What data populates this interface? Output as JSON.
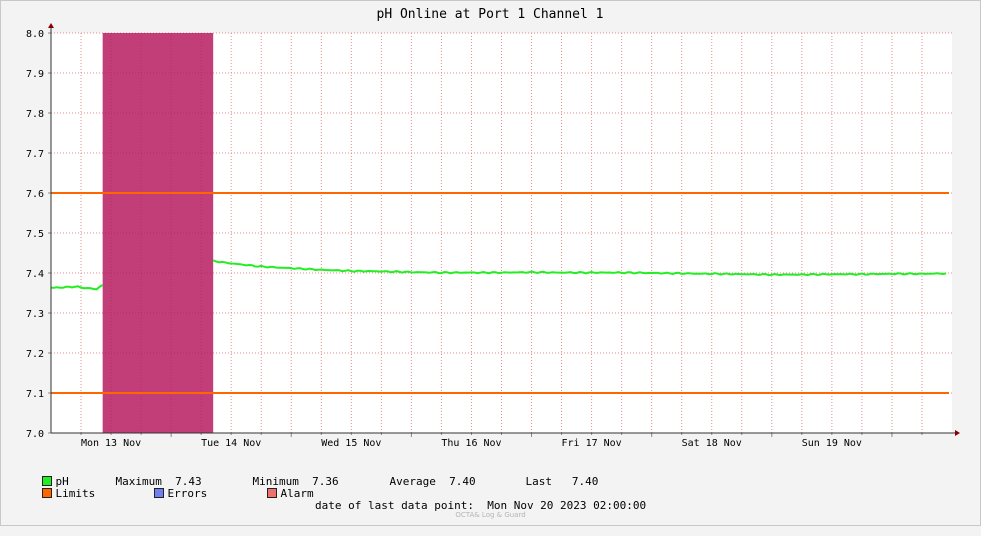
{
  "chart_data": {
    "type": "line",
    "title": "pH Online at Port 1 Channel 1",
    "y_ticks": [
      "7.0",
      "7.1",
      "7.2",
      "7.3",
      "7.4",
      "7.5",
      "7.6",
      "7.7",
      "7.8",
      "7.9",
      "8.0"
    ],
    "ylim": [
      7.0,
      8.0
    ],
    "xlim": [
      0,
      7.5
    ],
    "x_tick_labels": [
      "Mon 13 Nov",
      "Tue 14 Nov",
      "Wed 15 Nov",
      "Thu 16 Nov",
      "Fri 17 Nov",
      "Sat 18 Nov",
      "Sun 19 Nov"
    ],
    "x_tick_positions": [
      0.5,
      1.5,
      2.5,
      3.5,
      4.5,
      5.5,
      6.5
    ],
    "grid": true,
    "limits": {
      "name": "Limits",
      "values": [
        7.6,
        7.1
      ],
      "color": "#ff6600"
    },
    "alarm_band": {
      "x": [
        0.43,
        1.35
      ],
      "y": [
        7.0,
        8.0
      ],
      "color": "#b5145a"
    },
    "series": [
      {
        "name": "pH",
        "color": "#22ee22",
        "segments": [
          [
            [
              0.0,
              7.363
            ],
            [
              0.1,
              7.364
            ],
            [
              0.2,
              7.366
            ],
            [
              0.3,
              7.362
            ],
            [
              0.38,
              7.36
            ],
            [
              0.43,
              7.37
            ]
          ],
          [
            [
              1.35,
              7.43
            ],
            [
              1.5,
              7.424
            ],
            [
              1.75,
              7.416
            ],
            [
              2.0,
              7.412
            ],
            [
              2.25,
              7.408
            ],
            [
              2.5,
              7.405
            ],
            [
              2.75,
              7.404
            ],
            [
              3.0,
              7.402
            ],
            [
              3.25,
              7.401
            ],
            [
              3.5,
              7.401
            ],
            [
              3.75,
              7.401
            ],
            [
              4.0,
              7.402
            ],
            [
              4.25,
              7.401
            ],
            [
              4.5,
              7.401
            ],
            [
              4.75,
              7.401
            ],
            [
              5.0,
              7.4
            ],
            [
              5.25,
              7.399
            ],
            [
              5.5,
              7.398
            ],
            [
              5.75,
              7.397
            ],
            [
              6.0,
              7.396
            ],
            [
              6.25,
              7.396
            ],
            [
              6.5,
              7.397
            ],
            [
              6.75,
              7.397
            ],
            [
              7.0,
              7.398
            ],
            [
              7.25,
              7.398
            ],
            [
              7.45,
              7.399
            ]
          ]
        ]
      }
    ]
  },
  "legend": {
    "ph": {
      "label": "pH",
      "color": "#22ee22"
    },
    "maximum_label": "Maximum",
    "maximum_value": "7.43",
    "minimum_label": "Minimum",
    "minimum_value": "7.36",
    "average_label": "Average",
    "average_value": "7.40",
    "last_label": "Last",
    "last_value": "7.40",
    "limits": {
      "label": "Limits",
      "color": "#ff6600"
    },
    "errors": {
      "label": "Errors",
      "color": "#6f7ff2"
    },
    "alarm": {
      "label": "Alarm",
      "color": "#f07070"
    }
  },
  "footer": {
    "label": "date of last data point:",
    "value": "Mon Nov 20 2023 02:00:00"
  },
  "watermark": "OCTA& Log & Guard"
}
